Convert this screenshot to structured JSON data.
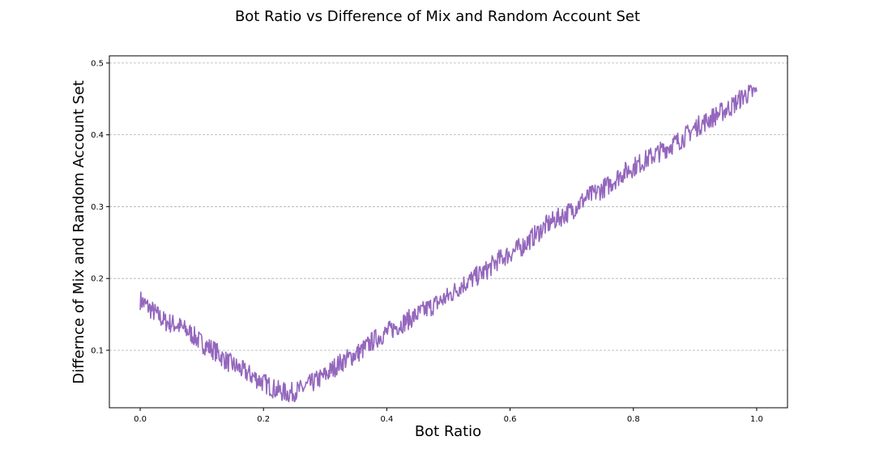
{
  "chart_data": {
    "type": "line",
    "title": "Bot Ratio vs Difference of Mix and Random Account Set",
    "xlabel": "Bot Ratio",
    "ylabel": "Differnce of Mix and Random Account Set",
    "xlim": [
      -0.05,
      1.05
    ],
    "ylim": [
      0.02,
      0.51
    ],
    "xticks": [
      0.0,
      0.2,
      0.4,
      0.6,
      0.8,
      1.0
    ],
    "xtick_labels": [
      "0.0",
      "0.2",
      "0.4",
      "0.6",
      "0.8",
      "1.0"
    ],
    "yticks": [
      0.1,
      0.2,
      0.3,
      0.4,
      0.5
    ],
    "ytick_labels": [
      "0.1",
      "0.2",
      "0.3",
      "0.4",
      "0.5"
    ],
    "grid": "y-dashed",
    "line_color": "#9467bd",
    "series": [
      {
        "x": [
          0.0,
          0.02,
          0.04,
          0.06,
          0.08,
          0.1,
          0.12,
          0.14,
          0.16,
          0.18,
          0.2,
          0.22,
          0.24,
          0.26,
          0.28,
          0.3,
          0.32,
          0.34,
          0.36,
          0.38,
          0.4,
          0.42,
          0.44,
          0.46,
          0.48,
          0.5,
          0.52,
          0.54,
          0.56,
          0.58,
          0.6,
          0.62,
          0.64,
          0.66,
          0.68,
          0.7,
          0.72,
          0.74,
          0.76,
          0.78,
          0.8,
          0.82,
          0.84,
          0.86,
          0.88,
          0.9,
          0.92,
          0.94,
          0.96,
          0.98,
          1.0
        ],
        "y": [
          0.17,
          0.155,
          0.14,
          0.135,
          0.125,
          0.11,
          0.1,
          0.085,
          0.075,
          0.065,
          0.055,
          0.045,
          0.04,
          0.045,
          0.055,
          0.065,
          0.08,
          0.09,
          0.1,
          0.115,
          0.125,
          0.135,
          0.145,
          0.155,
          0.165,
          0.175,
          0.19,
          0.2,
          0.21,
          0.225,
          0.235,
          0.245,
          0.26,
          0.275,
          0.285,
          0.295,
          0.31,
          0.32,
          0.33,
          0.345,
          0.355,
          0.365,
          0.375,
          0.385,
          0.395,
          0.41,
          0.42,
          0.43,
          0.44,
          0.455,
          0.46
        ]
      }
    ]
  }
}
